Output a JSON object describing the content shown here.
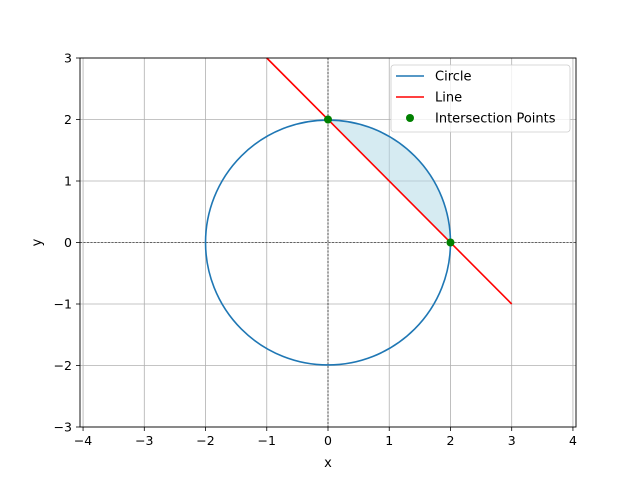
{
  "chart_data": {
    "type": "line",
    "title": "",
    "xlabel": "x",
    "ylabel": "y",
    "xlim": [
      -4.05,
      4.05
    ],
    "ylim": [
      -3,
      3
    ],
    "xticks": [
      -4,
      -3,
      -2,
      -1,
      0,
      1,
      2,
      3,
      4
    ],
    "yticks": [
      -3,
      -2,
      -1,
      0,
      1,
      2,
      3
    ],
    "xtick_labels": [
      "−4",
      "−3",
      "−2",
      "−1",
      "0",
      "1",
      "2",
      "3",
      "4"
    ],
    "ytick_labels": [
      "−3",
      "−2",
      "−1",
      "0",
      "1",
      "2",
      "3"
    ],
    "grid": true,
    "axes_origin_lines": true,
    "legend_position": "top-right",
    "series": [
      {
        "name": "Circle",
        "kind": "circle",
        "center": [
          0,
          0
        ],
        "radius": 2,
        "color": "#1f77b4"
      },
      {
        "name": "Line",
        "kind": "line",
        "x": [
          -1,
          3
        ],
        "y": [
          3,
          -1
        ],
        "color": "#ff0000"
      },
      {
        "name": "Intersection Points",
        "kind": "scatter",
        "x": [
          0,
          2
        ],
        "y": [
          2,
          0
        ],
        "color": "#008000"
      }
    ],
    "shaded_region": {
      "description_only": false,
      "fill": "#add8e6",
      "opacity": 0.5,
      "bounded_by": [
        "Circle",
        "Line"
      ],
      "x_range": [
        0,
        2
      ]
    }
  }
}
